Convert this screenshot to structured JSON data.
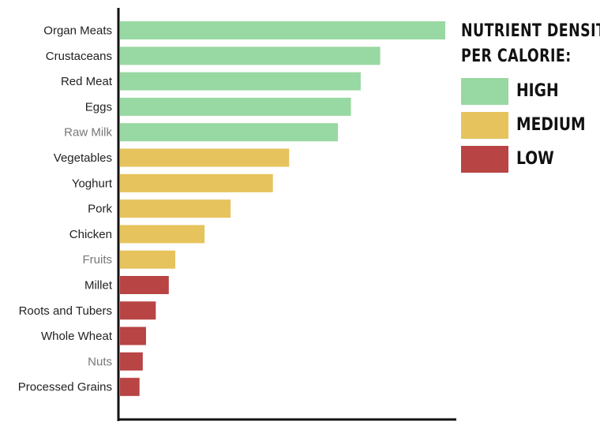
{
  "chart_data": {
    "type": "bar",
    "orientation": "horizontal",
    "title": "",
    "xlabel": "",
    "ylabel": "",
    "xlim": [
      0,
      100
    ],
    "grid": false,
    "legend_position": "top-right",
    "categories": [
      "Organ Meats",
      "Crustaceans",
      "Red Meat",
      "Eggs",
      "Raw Milk",
      "Vegetables",
      "Yoghurt",
      "Pork",
      "Chicken",
      "Fruits",
      "Millet",
      "Roots and Tubers",
      "Whole Wheat",
      "Nuts",
      "Processed Grains"
    ],
    "values": [
      100,
      80,
      74,
      71,
      67,
      52,
      47,
      34,
      26,
      17,
      15,
      11,
      8,
      7,
      6
    ],
    "levels": [
      "high",
      "high",
      "high",
      "high",
      "high",
      "medium",
      "medium",
      "medium",
      "medium",
      "medium",
      "low",
      "low",
      "low",
      "low",
      "low"
    ]
  },
  "legend": {
    "title_line1": "NUTRIENT DENSITY",
    "title_line2": "PER CALORIE:",
    "items": [
      {
        "key": "high",
        "label": "HIGH",
        "color": "#98d8a2"
      },
      {
        "key": "medium",
        "label": "MEDIUM",
        "color": "#e6c35c"
      },
      {
        "key": "low",
        "label": "LOW",
        "color": "#b84444"
      }
    ]
  }
}
